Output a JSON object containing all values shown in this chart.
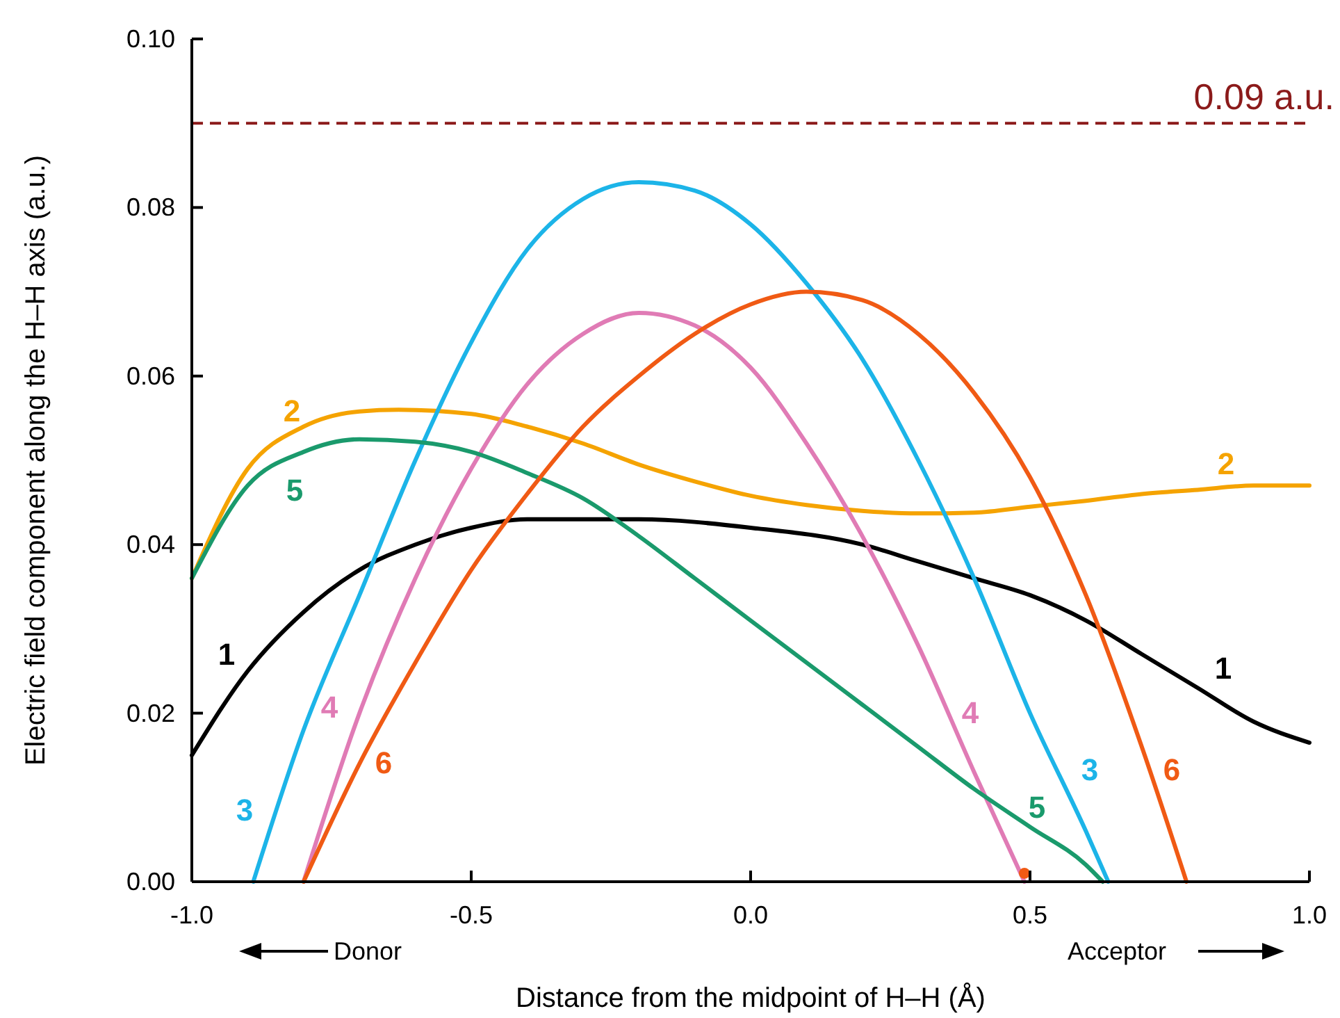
{
  "chart_data": {
    "type": "line",
    "xlabel": "Distance from the midpoint of H–H (Å)",
    "ylabel": "Electric field component along the H–H axis (a.u.)",
    "xlim": [
      -1,
      1
    ],
    "xticks": [
      {
        "value": -1,
        "label": "-1.0"
      },
      {
        "value": -0.5,
        "label": "-0.5"
      },
      {
        "value": 0,
        "label": "0.0"
      },
      {
        "value": 0.5,
        "label": "0.5"
      },
      {
        "value": 1,
        "label": "1.0"
      }
    ],
    "ylim": [
      0,
      0.1
    ],
    "yticks": [
      {
        "value": 0,
        "label": "0.00"
      },
      {
        "value": 0.02,
        "label": "0.02"
      },
      {
        "value": 0.04,
        "label": "0.04"
      },
      {
        "value": 0.06,
        "label": "0.06"
      },
      {
        "value": 0.08,
        "label": "0.08"
      },
      {
        "value": 0.1,
        "label": "0.10"
      }
    ],
    "grid": false,
    "legend": false,
    "marker": "none",
    "line_style": "solid",
    "series": [
      {
        "name": "1",
        "color": "#000000",
        "x": [
          -1,
          -0.9,
          -0.8,
          -0.7,
          -0.6,
          -0.5,
          -0.4,
          -0.2,
          0,
          0.2,
          0.3,
          0.4,
          0.5,
          0.6,
          0.7,
          0.8,
          0.9,
          1
        ],
        "values": [
          0.015,
          0.025,
          0.032,
          0.037,
          0.04,
          0.042,
          0.043,
          0.043,
          0.042,
          0.04,
          0.038,
          0.036,
          0.034,
          0.031,
          0.027,
          0.023,
          0.019,
          0.0165
        ]
      },
      {
        "name": "2",
        "color": "#f5a300",
        "x": [
          -1,
          -0.9,
          -0.8,
          -0.7,
          -0.63,
          -0.5,
          -0.4,
          -0.3,
          -0.2,
          -0.1,
          0,
          0.1,
          0.2,
          0.3,
          0.4,
          0.5,
          0.6,
          0.7,
          0.8,
          0.9,
          1
        ],
        "values": [
          0.036,
          0.049,
          0.054,
          0.0558,
          0.056,
          0.0555,
          0.054,
          0.052,
          0.0495,
          0.0475,
          0.0458,
          0.0447,
          0.044,
          0.0437,
          0.0438,
          0.0445,
          0.0452,
          0.046,
          0.0465,
          0.047,
          0.047
        ]
      },
      {
        "name": "3",
        "color": "#1cb4e8",
        "x": [
          -0.89,
          -0.8,
          -0.7,
          -0.6,
          -0.5,
          -0.4,
          -0.3,
          -0.2,
          -0.1,
          0,
          0.1,
          0.2,
          0.3,
          0.4,
          0.5,
          0.6,
          0.64
        ],
        "values": [
          0,
          0.018,
          0.034,
          0.05,
          0.064,
          0.075,
          0.081,
          0.083,
          0.082,
          0.078,
          0.071,
          0.062,
          0.05,
          0.036,
          0.02,
          0.006,
          0
        ]
      },
      {
        "name": "4",
        "color": "#e07bb5",
        "x": [
          -0.8,
          -0.7,
          -0.6,
          -0.5,
          -0.4,
          -0.3,
          -0.2,
          -0.1,
          0,
          0.1,
          0.2,
          0.3,
          0.4,
          0.49
        ],
        "values": [
          0,
          0.02,
          0.036,
          0.049,
          0.059,
          0.065,
          0.0675,
          0.066,
          0.061,
          0.052,
          0.041,
          0.028,
          0.013,
          0
        ]
      },
      {
        "name": "5",
        "color": "#1a9a6c",
        "x": [
          -1,
          -0.9,
          -0.8,
          -0.7,
          -0.6,
          -0.5,
          -0.4,
          -0.3,
          -0.2,
          -0.1,
          0,
          0.1,
          0.2,
          0.3,
          0.4,
          0.5,
          0.6,
          0.63
        ],
        "values": [
          0.036,
          0.047,
          0.051,
          0.0525,
          0.0522,
          0.051,
          0.0485,
          0.0455,
          0.041,
          0.036,
          0.031,
          0.026,
          0.021,
          0.016,
          0.011,
          0.0065,
          0.002,
          0
        ]
      },
      {
        "name": "6",
        "color": "#f05a14",
        "x": [
          -0.8,
          -0.7,
          -0.6,
          -0.5,
          -0.4,
          -0.3,
          -0.2,
          -0.1,
          0,
          0.1,
          0.2,
          0.3,
          0.4,
          0.5,
          0.6,
          0.7,
          0.78
        ],
        "values": [
          0,
          0.014,
          0.026,
          0.037,
          0.046,
          0.054,
          0.06,
          0.065,
          0.0685,
          0.07,
          0.069,
          0.065,
          0.058,
          0.048,
          0.034,
          0.016,
          0
        ]
      },
      {
        "type": "scatter",
        "marker": "circle",
        "color": "#f05a14",
        "x": [
          0.49
        ],
        "values": [
          0.001
        ]
      }
    ],
    "ref_lines": [
      {
        "axis": "y",
        "value": 0.09,
        "label": "0.09 a.u.",
        "color": "#8b1a1a",
        "line_style": "dashed"
      }
    ],
    "annotations": [
      "Donor",
      "Acceptor"
    ]
  }
}
